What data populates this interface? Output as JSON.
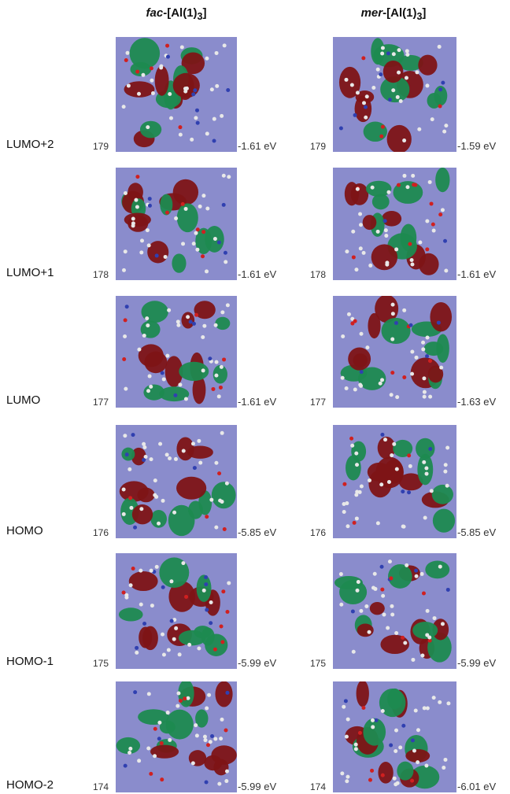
{
  "columns": [
    {
      "italic": "fac",
      "text": "-[Al(1)",
      "sub": "3",
      "end": "]"
    },
    {
      "italic": "mer",
      "text": "-[Al(1)",
      "sub": "3",
      "end": "]"
    }
  ],
  "rows": [
    {
      "label": "LUMO+2",
      "cells": [
        {
          "number": "179",
          "energy": "-1.61 eV"
        },
        {
          "number": "179",
          "energy": "-1.59 eV"
        }
      ]
    },
    {
      "label": "LUMO+1",
      "cells": [
        {
          "number": "178",
          "energy": "-1.61 eV"
        },
        {
          "number": "178",
          "energy": "-1.61 eV"
        }
      ]
    },
    {
      "label": "LUMO",
      "cells": [
        {
          "number": "177",
          "energy": "-1.61 eV"
        },
        {
          "number": "177",
          "energy": "-1.63 eV"
        }
      ]
    },
    {
      "label": "HOMO",
      "cells": [
        {
          "number": "176",
          "energy": "-5.85 eV"
        },
        {
          "number": "176",
          "energy": "-5.85 eV"
        }
      ]
    },
    {
      "label": "HOMO-1",
      "cells": [
        {
          "number": "175",
          "energy": "-5.99 eV"
        },
        {
          "number": "175",
          "energy": "-5.99 eV"
        }
      ]
    },
    {
      "label": "HOMO-2",
      "cells": [
        {
          "number": "174",
          "energy": "-5.99 eV"
        },
        {
          "number": "174",
          "energy": "-6.01 eV"
        }
      ]
    }
  ]
}
